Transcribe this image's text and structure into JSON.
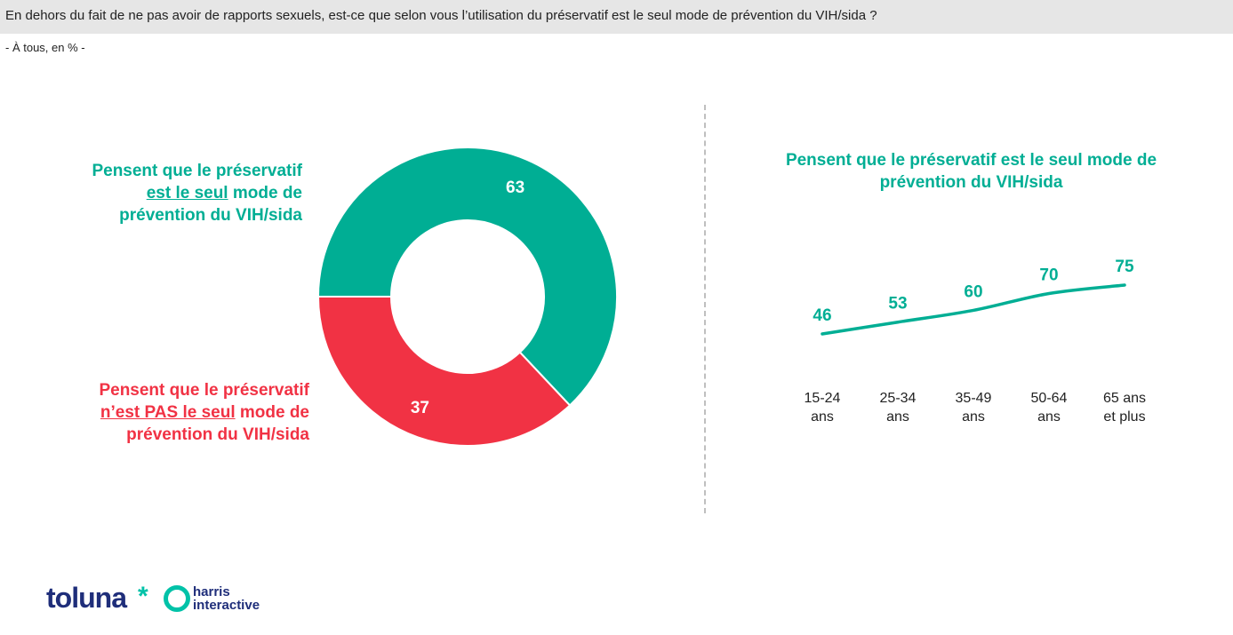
{
  "header": {
    "question": "En dehors du fait de ne pas avoir de rapports sexuels, est-ce que selon vous l’utilisation du préservatif est le seul mode de prévention du VIH/sida ?",
    "base": "- À tous, en % -"
  },
  "donut_labels": {
    "yes_pre": "Pensent que le préservatif",
    "yes_u": "est le seul",
    "yes_post": " mode de",
    "yes_line3": "prévention du VIH/sida",
    "no_pre": "Pensent que le préservatif",
    "no_u": "n’est PAS le seul",
    "no_post": " mode de",
    "no_line3": "prévention du VIH/sida"
  },
  "line_title": "Pensent que le préservatif est le seul mode de prévention du VIH/sida",
  "chart_data": [
    {
      "type": "pie",
      "values": [
        63,
        37
      ],
      "colors": [
        "#00ae94",
        "#f13244"
      ]
    },
    {
      "type": "line",
      "categories": [
        [
          "15-24",
          "ans"
        ],
        [
          "25-34",
          "ans"
        ],
        [
          "35-49",
          "ans"
        ],
        [
          "50-64",
          "ans"
        ],
        [
          "65 ans",
          "et plus"
        ]
      ],
      "series": [
        {
          "values": [
            46,
            53,
            60,
            70,
            75
          ]
        }
      ],
      "color": "#00ae94"
    }
  ],
  "logo": {
    "brand1": "toluna",
    "brand1_mark": "*",
    "brand2_line1": "harris",
    "brand2_line2": "interactive"
  }
}
